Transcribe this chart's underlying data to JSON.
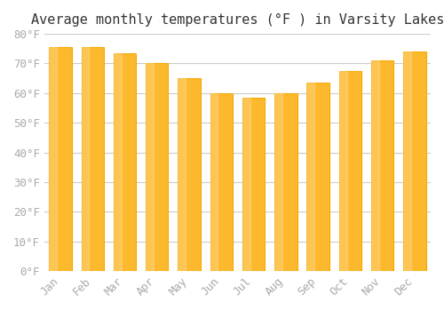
{
  "title": "Average monthly temperatures (°F ) in Varsity Lakes",
  "months": [
    "Jan",
    "Feb",
    "Mar",
    "Apr",
    "May",
    "Jun",
    "Jul",
    "Aug",
    "Sep",
    "Oct",
    "Nov",
    "Dec"
  ],
  "values": [
    75.5,
    75.5,
    73.3,
    70.0,
    65.0,
    60.0,
    58.5,
    60.0,
    63.5,
    67.5,
    71.0,
    74.0
  ],
  "bar_color_face": "#FDB92E",
  "bar_color_edge": "#F5A800",
  "ylim": [
    0,
    80
  ],
  "yticks": [
    0,
    10,
    20,
    30,
    40,
    50,
    60,
    70,
    80
  ],
  "ytick_labels": [
    "0°F",
    "10°F",
    "20°F",
    "30°F",
    "40°F",
    "50°F",
    "60°F",
    "70°F",
    "80°F"
  ],
  "background_color": "#FFFFFF",
  "grid_color": "#CCCCCC",
  "title_fontsize": 11,
  "tick_fontsize": 9,
  "tick_color": "#AAAAAA",
  "font_family": "monospace"
}
